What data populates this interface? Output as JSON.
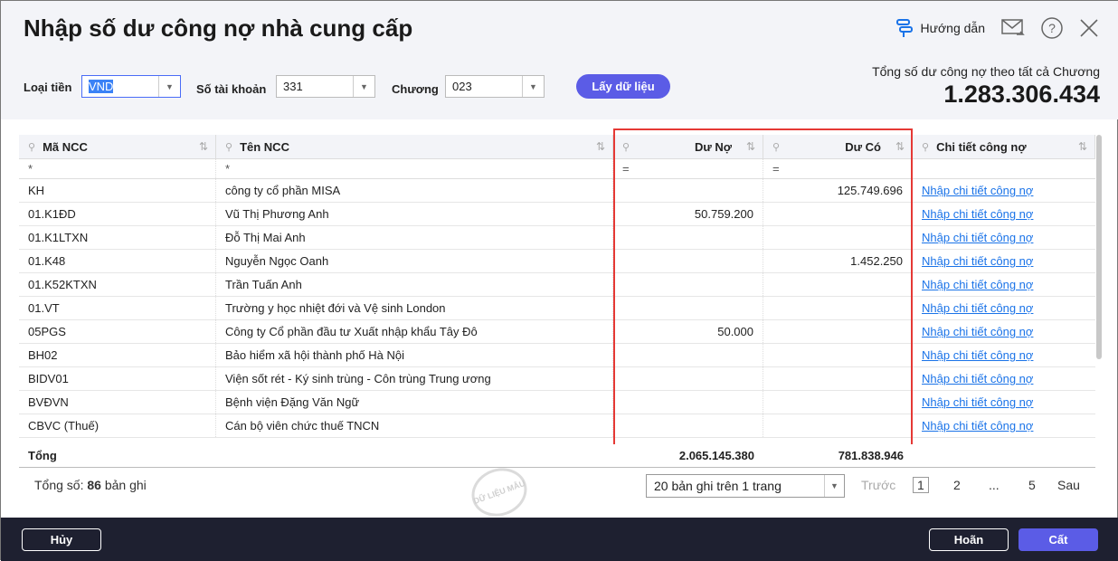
{
  "title": "Nhập số dư công nợ nhà cung cấp",
  "header": {
    "guide_label": "Hướng dẫn"
  },
  "filters": {
    "currency_label": "Loại tiền",
    "currency_value": "VND",
    "account_label": "Số tài khoản",
    "account_value": "331",
    "chapter_label": "Chương",
    "chapter_value": "023",
    "fetch_button": "Lấy dữ liệu"
  },
  "summary": {
    "label": "Tổng số dư công nợ theo tất cả Chương",
    "value": "1.283.306.434"
  },
  "table": {
    "columns": [
      "Mã NCC",
      "Tên NCC",
      "Dư Nợ",
      "Dư Có",
      "Chi tiết công nợ"
    ],
    "filters": [
      "*",
      "*",
      "=",
      "=",
      ""
    ],
    "rows": [
      [
        "KH",
        "công ty cổ phần MISA",
        "",
        "125.749.696",
        "Nhập chi tiết công nợ"
      ],
      [
        "01.K1ĐD",
        "Vũ Thị Phương Anh",
        "50.759.200",
        "",
        "Nhập chi tiết công nợ"
      ],
      [
        "01.K1LTXN",
        "Đỗ Thị Mai Anh",
        "",
        "",
        "Nhập chi tiết công nợ"
      ],
      [
        "01.K48",
        "Nguyễn Ngọc Oanh",
        "",
        "1.452.250",
        "Nhập chi tiết công nợ"
      ],
      [
        "01.K52KTXN",
        "Trần Tuấn Anh",
        "",
        "",
        "Nhập chi tiết công nợ"
      ],
      [
        "01.VT",
        "Trường y học nhiệt đới và Vệ sinh London",
        "",
        "",
        "Nhập chi tiết công nợ"
      ],
      [
        "05PGS",
        "Công ty Cổ phần đầu tư Xuất nhập khẩu Tây Đô",
        "50.000",
        "",
        "Nhập chi tiết công nợ"
      ],
      [
        "BH02",
        "Bảo hiểm xã hội thành phố Hà Nội",
        "",
        "",
        "Nhập chi tiết công nợ"
      ],
      [
        "BIDV01",
        "Viện sốt rét - Ký sinh trùng - Côn trùng Trung ương",
        "",
        "",
        "Nhập chi tiết công nợ"
      ],
      [
        "BVĐVN",
        "Bệnh viện Đặng Văn Ngữ",
        "",
        "",
        "Nhập chi tiết công nợ"
      ],
      [
        "CBVC (Thuế)",
        "Cán bộ viên chức thuế TNCN",
        "",
        "",
        "Nhập chi tiết công nợ"
      ]
    ],
    "total": {
      "label": "Tổng",
      "debit": "2.065.145.380",
      "credit": "781.838.946"
    }
  },
  "pager": {
    "count_prefix": "Tổng số:",
    "count": "86",
    "count_suffix": "bản ghi",
    "page_size": "20 bản ghi trên 1 trang",
    "prev": "Trước",
    "pages": [
      "1",
      "2",
      "...",
      "5"
    ],
    "next": "Sau"
  },
  "stamp": "DỮ LIỆU MẪU",
  "footer": {
    "cancel": "Hủy",
    "undo": "Hoãn",
    "save": "Cất"
  },
  "colors": {
    "accent": "#5b5ce6",
    "highlight": "#e53935",
    "link": "#1a73e8",
    "footer_bg": "#1e2030"
  }
}
